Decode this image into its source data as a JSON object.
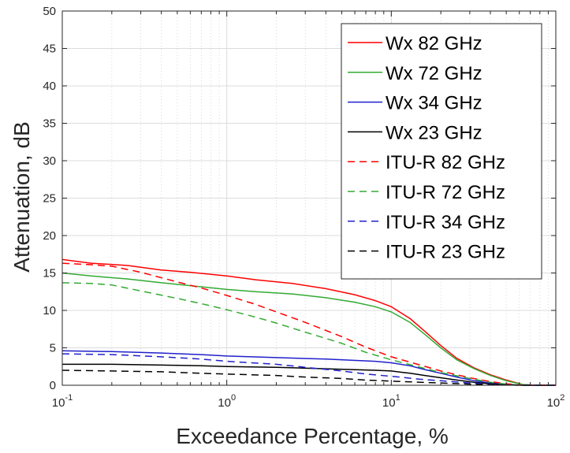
{
  "chart_data": {
    "type": "line",
    "xlabel": "Exceedance Percentage, %",
    "ylabel": "Attenuation, dB",
    "x_scale": "log",
    "xlim": [
      0.1,
      100
    ],
    "ylim": [
      0,
      50
    ],
    "grid": true,
    "legend_position": "top-right",
    "x_ticks": [
      {
        "value": 0.1,
        "base": "10",
        "exp": "-1"
      },
      {
        "value": 1,
        "base": "10",
        "exp": "0"
      },
      {
        "value": 10,
        "base": "10",
        "exp": "1"
      },
      {
        "value": 100,
        "base": "10",
        "exp": "2"
      }
    ],
    "y_ticks": [
      "0",
      "5",
      "10",
      "15",
      "20",
      "25",
      "30",
      "35",
      "40",
      "45",
      "50"
    ],
    "series": [
      {
        "name": "Wx 82 GHz",
        "color": "#ff0000",
        "dash": "solid",
        "points": [
          [
            0.1,
            16.8
          ],
          [
            0.15,
            16.3
          ],
          [
            0.25,
            16.0
          ],
          [
            0.4,
            15.4
          ],
          [
            0.6,
            15.1
          ],
          [
            1,
            14.6
          ],
          [
            1.5,
            14.1
          ],
          [
            2.5,
            13.6
          ],
          [
            4,
            12.9
          ],
          [
            6,
            12.1
          ],
          [
            8,
            11.3
          ],
          [
            10,
            10.5
          ],
          [
            13,
            8.9
          ],
          [
            16,
            7.2
          ],
          [
            20,
            5.3
          ],
          [
            25,
            3.6
          ],
          [
            32,
            2.3
          ],
          [
            40,
            1.4
          ],
          [
            50,
            0.7
          ],
          [
            63,
            0.1
          ],
          [
            75,
            0
          ],
          [
            100,
            0
          ]
        ]
      },
      {
        "name": "Wx 72 GHz",
        "color": "#33aa33",
        "dash": "solid",
        "points": [
          [
            0.1,
            15.0
          ],
          [
            0.15,
            14.6
          ],
          [
            0.25,
            14.2
          ],
          [
            0.4,
            13.7
          ],
          [
            0.6,
            13.3
          ],
          [
            1,
            12.8
          ],
          [
            1.5,
            12.5
          ],
          [
            2.5,
            12.2
          ],
          [
            4,
            11.7
          ],
          [
            6,
            11.1
          ],
          [
            8,
            10.5
          ],
          [
            10,
            9.8
          ],
          [
            13,
            8.4
          ],
          [
            16,
            6.8
          ],
          [
            20,
            5.0
          ],
          [
            25,
            3.4
          ],
          [
            32,
            2.2
          ],
          [
            40,
            1.3
          ],
          [
            50,
            0.6
          ],
          [
            63,
            0.1
          ],
          [
            75,
            0
          ],
          [
            100,
            0
          ]
        ]
      },
      {
        "name": "Wx 34 GHz",
        "color": "#2020cc",
        "dash": "solid",
        "points": [
          [
            0.1,
            4.6
          ],
          [
            0.2,
            4.5
          ],
          [
            0.4,
            4.3
          ],
          [
            0.7,
            4.1
          ],
          [
            1,
            3.9
          ],
          [
            2,
            3.7
          ],
          [
            4,
            3.5
          ],
          [
            8,
            3.2
          ],
          [
            10,
            3.0
          ],
          [
            13,
            2.6
          ],
          [
            16,
            2.1
          ],
          [
            20,
            1.6
          ],
          [
            25,
            1.1
          ],
          [
            32,
            0.6
          ],
          [
            40,
            0.3
          ],
          [
            50,
            0.1
          ],
          [
            63,
            0
          ],
          [
            100,
            0
          ]
        ]
      },
      {
        "name": "Wx 23 GHz",
        "color": "#000000",
        "dash": "solid",
        "points": [
          [
            0.1,
            2.8
          ],
          [
            0.2,
            2.8
          ],
          [
            0.4,
            2.7
          ],
          [
            0.7,
            2.6
          ],
          [
            1,
            2.5
          ],
          [
            2,
            2.4
          ],
          [
            4,
            2.2
          ],
          [
            8,
            2.0
          ],
          [
            10,
            1.9
          ],
          [
            13,
            1.6
          ],
          [
            16,
            1.3
          ],
          [
            20,
            1.0
          ],
          [
            25,
            0.7
          ],
          [
            32,
            0.4
          ],
          [
            40,
            0.2
          ],
          [
            50,
            0.05
          ],
          [
            63,
            0
          ],
          [
            100,
            0
          ]
        ]
      },
      {
        "name": "ITU-R 82 GHz",
        "color": "#ff0000",
        "dash": "dashed",
        "points": [
          [
            0.1,
            16.3
          ],
          [
            0.15,
            16.1
          ],
          [
            0.2,
            15.9
          ],
          [
            0.3,
            15.1
          ],
          [
            0.5,
            13.8
          ],
          [
            0.7,
            13.0
          ],
          [
            1,
            12.0
          ],
          [
            1.5,
            10.8
          ],
          [
            2,
            9.8
          ],
          [
            3,
            8.4
          ],
          [
            5,
            6.5
          ],
          [
            7,
            5.1
          ],
          [
            10,
            3.8
          ],
          [
            15,
            2.7
          ],
          [
            20,
            1.9
          ],
          [
            30,
            1.0
          ],
          [
            40,
            0.5
          ],
          [
            50,
            0.2
          ],
          [
            63,
            0
          ],
          [
            100,
            0
          ]
        ]
      },
      {
        "name": "ITU-R 72 GHz",
        "color": "#33aa33",
        "dash": "dashed",
        "points": [
          [
            0.1,
            13.7
          ],
          [
            0.15,
            13.6
          ],
          [
            0.2,
            13.4
          ],
          [
            0.3,
            12.6
          ],
          [
            0.5,
            11.6
          ],
          [
            0.7,
            10.9
          ],
          [
            1,
            10.1
          ],
          [
            1.5,
            9.1
          ],
          [
            2,
            8.3
          ],
          [
            3,
            7.1
          ],
          [
            5,
            5.6
          ],
          [
            7,
            4.4
          ],
          [
            10,
            3.4
          ],
          [
            15,
            2.4
          ],
          [
            20,
            1.7
          ],
          [
            30,
            0.9
          ],
          [
            40,
            0.4
          ],
          [
            50,
            0.15
          ],
          [
            63,
            0
          ],
          [
            100,
            0
          ]
        ]
      },
      {
        "name": "ITU-R 34 GHz",
        "color": "#2020cc",
        "dash": "dashed",
        "points": [
          [
            0.1,
            4.2
          ],
          [
            0.2,
            4.1
          ],
          [
            0.4,
            3.8
          ],
          [
            0.7,
            3.5
          ],
          [
            1,
            3.2
          ],
          [
            2,
            2.8
          ],
          [
            3,
            2.4
          ],
          [
            5,
            1.9
          ],
          [
            7,
            1.5
          ],
          [
            10,
            1.2
          ],
          [
            15,
            0.8
          ],
          [
            20,
            0.6
          ],
          [
            30,
            0.3
          ],
          [
            40,
            0.15
          ],
          [
            50,
            0.05
          ],
          [
            63,
            0
          ],
          [
            100,
            0
          ]
        ]
      },
      {
        "name": "ITU-R 23 GHz",
        "color": "#000000",
        "dash": "dashed",
        "points": [
          [
            0.1,
            2.0
          ],
          [
            0.2,
            1.9
          ],
          [
            0.4,
            1.8
          ],
          [
            0.7,
            1.6
          ],
          [
            1,
            1.5
          ],
          [
            2,
            1.3
          ],
          [
            3,
            1.1
          ],
          [
            5,
            0.9
          ],
          [
            7,
            0.7
          ],
          [
            10,
            0.55
          ],
          [
            15,
            0.4
          ],
          [
            20,
            0.3
          ],
          [
            30,
            0.15
          ],
          [
            40,
            0.08
          ],
          [
            50,
            0.03
          ],
          [
            63,
            0
          ],
          [
            100,
            0
          ]
        ]
      }
    ]
  }
}
